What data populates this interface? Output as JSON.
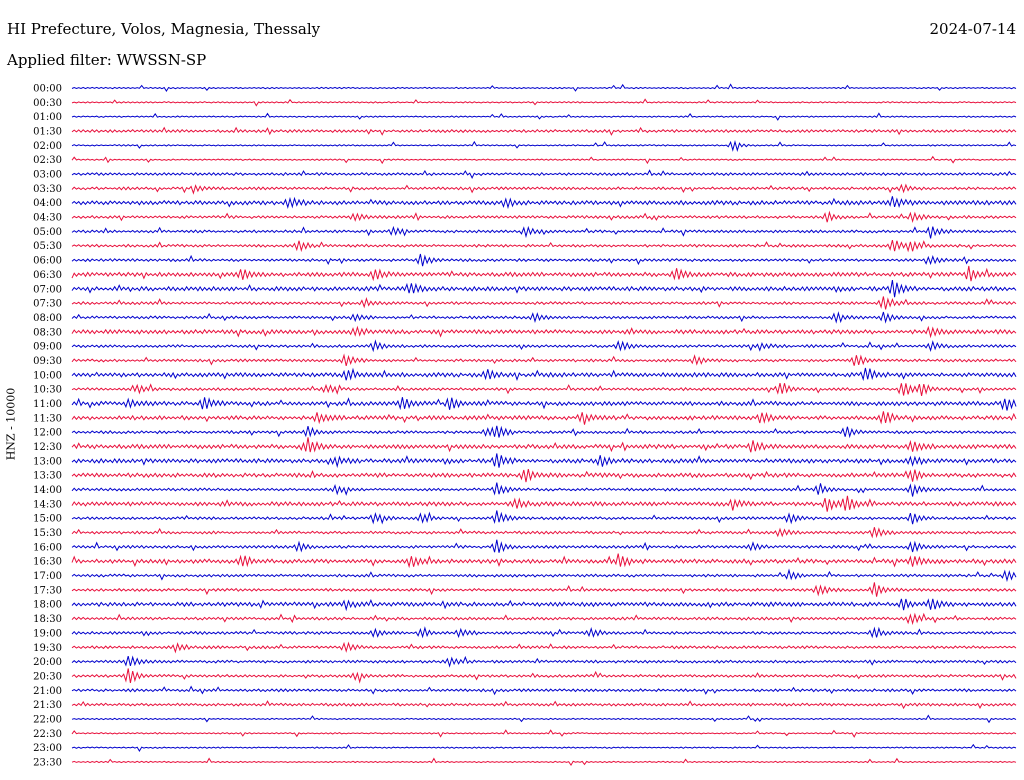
{
  "header": {
    "title": "HI Prefecture, Volos, Magnesia, Thessaly",
    "date": "2024-07-14",
    "filter": "Applied filter: WWSSN-SP"
  },
  "chart_data": {
    "type": "line",
    "ylabel": "HNZ - 10000",
    "row_labels": [
      "00:00",
      "00:30",
      "01:00",
      "01:30",
      "02:00",
      "02:30",
      "03:00",
      "03:30",
      "04:00",
      "04:30",
      "05:00",
      "05:30",
      "06:00",
      "06:30",
      "07:00",
      "07:30",
      "08:00",
      "08:30",
      "09:00",
      "09:30",
      "10:00",
      "10:30",
      "11:00",
      "11:30",
      "12:00",
      "12:30",
      "13:00",
      "13:30",
      "14:00",
      "14:30",
      "15:00",
      "15:30",
      "16:00",
      "16:30",
      "17:00",
      "17:30",
      "18:00",
      "18:30",
      "19:00",
      "19:30",
      "20:00",
      "20:30",
      "21:00",
      "21:30",
      "22:00",
      "22:30",
      "23:00",
      "23:30"
    ],
    "series_colors": [
      "#0000cc",
      "#e8103c"
    ],
    "noise_level": [
      1,
      1,
      1,
      2,
      1,
      1,
      2,
      2,
      3,
      2,
      2,
      2,
      2,
      3,
      3,
      2,
      2,
      3,
      2,
      2,
      3,
      2,
      3,
      3,
      2,
      3,
      3,
      3,
      2,
      3,
      2,
      2,
      2,
      3,
      2,
      2,
      3,
      2,
      2,
      2,
      2,
      2,
      2,
      2,
      1,
      1,
      1,
      1
    ],
    "events": [
      {
        "row": 4,
        "x": 0.7,
        "a": 5
      },
      {
        "row": 7,
        "x": 0.13,
        "a": 3
      },
      {
        "row": 7,
        "x": 0.88,
        "a": 4
      },
      {
        "row": 8,
        "x": 0.23,
        "a": 5
      },
      {
        "row": 8,
        "x": 0.46,
        "a": 4
      },
      {
        "row": 8,
        "x": 0.87,
        "a": 6
      },
      {
        "row": 9,
        "x": 0.3,
        "a": 4
      },
      {
        "row": 9,
        "x": 0.8,
        "a": 5
      },
      {
        "row": 9,
        "x": 0.89,
        "a": 5
      },
      {
        "row": 10,
        "x": 0.34,
        "a": 4
      },
      {
        "row": 10,
        "x": 0.48,
        "a": 5
      },
      {
        "row": 10,
        "x": 0.91,
        "a": 6
      },
      {
        "row": 11,
        "x": 0.24,
        "a": 5
      },
      {
        "row": 11,
        "x": 0.87,
        "a": 7
      },
      {
        "row": 11,
        "x": 0.89,
        "a": 5
      },
      {
        "row": 12,
        "x": 0.37,
        "a": 6
      },
      {
        "row": 12,
        "x": 0.91,
        "a": 4
      },
      {
        "row": 13,
        "x": 0.18,
        "a": 6
      },
      {
        "row": 13,
        "x": 0.32,
        "a": 6
      },
      {
        "row": 13,
        "x": 0.64,
        "a": 6
      },
      {
        "row": 13,
        "x": 0.95,
        "a": 7
      },
      {
        "row": 14,
        "x": 0.36,
        "a": 5
      },
      {
        "row": 14,
        "x": 0.87,
        "a": 8
      },
      {
        "row": 15,
        "x": 0.31,
        "a": 4
      },
      {
        "row": 15,
        "x": 0.86,
        "a": 8
      },
      {
        "row": 16,
        "x": 0.3,
        "a": 4
      },
      {
        "row": 16,
        "x": 0.49,
        "a": 4
      },
      {
        "row": 16,
        "x": 0.81,
        "a": 5
      },
      {
        "row": 16,
        "x": 0.86,
        "a": 5
      },
      {
        "row": 17,
        "x": 0.3,
        "a": 4
      },
      {
        "row": 17,
        "x": 0.91,
        "a": 5
      },
      {
        "row": 18,
        "x": 0.32,
        "a": 6
      },
      {
        "row": 18,
        "x": 0.58,
        "a": 6
      },
      {
        "row": 18,
        "x": 0.73,
        "a": 4
      },
      {
        "row": 18,
        "x": 0.91,
        "a": 4
      },
      {
        "row": 19,
        "x": 0.29,
        "a": 6
      },
      {
        "row": 19,
        "x": 0.66,
        "a": 5
      },
      {
        "row": 19,
        "x": 0.83,
        "a": 6
      },
      {
        "row": 20,
        "x": 0.29,
        "a": 5
      },
      {
        "row": 20,
        "x": 0.44,
        "a": 5
      },
      {
        "row": 20,
        "x": 0.84,
        "a": 6
      },
      {
        "row": 21,
        "x": 0.07,
        "a": 4
      },
      {
        "row": 21,
        "x": 0.27,
        "a": 4
      },
      {
        "row": 21,
        "x": 0.75,
        "a": 7
      },
      {
        "row": 21,
        "x": 0.88,
        "a": 9
      },
      {
        "row": 21,
        "x": 0.9,
        "a": 6
      },
      {
        "row": 22,
        "x": 0.06,
        "a": 4
      },
      {
        "row": 22,
        "x": 0.14,
        "a": 7
      },
      {
        "row": 22,
        "x": 0.35,
        "a": 6
      },
      {
        "row": 22,
        "x": 0.4,
        "a": 6
      },
      {
        "row": 22,
        "x": 0.99,
        "a": 6
      },
      {
        "row": 23,
        "x": 0.26,
        "a": 5
      },
      {
        "row": 23,
        "x": 0.54,
        "a": 5
      },
      {
        "row": 23,
        "x": 0.73,
        "a": 5
      },
      {
        "row": 23,
        "x": 0.86,
        "a": 7
      },
      {
        "row": 24,
        "x": 0.25,
        "a": 5
      },
      {
        "row": 24,
        "x": 0.44,
        "a": 4
      },
      {
        "row": 24,
        "x": 0.45,
        "a": 7
      },
      {
        "row": 24,
        "x": 0.82,
        "a": 6
      },
      {
        "row": 25,
        "x": 0.25,
        "a": 8
      },
      {
        "row": 25,
        "x": 0.72,
        "a": 6
      },
      {
        "row": 25,
        "x": 0.89,
        "a": 6
      },
      {
        "row": 26,
        "x": 0.28,
        "a": 5
      },
      {
        "row": 26,
        "x": 0.45,
        "a": 7
      },
      {
        "row": 26,
        "x": 0.56,
        "a": 5
      },
      {
        "row": 26,
        "x": 0.89,
        "a": 5
      },
      {
        "row": 27,
        "x": 0.48,
        "a": 7
      },
      {
        "row": 27,
        "x": 0.89,
        "a": 6
      },
      {
        "row": 28,
        "x": 0.28,
        "a": 4
      },
      {
        "row": 28,
        "x": 0.45,
        "a": 6
      },
      {
        "row": 28,
        "x": 0.79,
        "a": 5
      },
      {
        "row": 28,
        "x": 0.89,
        "a": 6
      },
      {
        "row": 29,
        "x": 0.47,
        "a": 5
      },
      {
        "row": 29,
        "x": 0.7,
        "a": 5
      },
      {
        "row": 29,
        "x": 0.8,
        "a": 7
      },
      {
        "row": 29,
        "x": 0.82,
        "a": 8
      },
      {
        "row": 30,
        "x": 0.32,
        "a": 5
      },
      {
        "row": 30,
        "x": 0.37,
        "a": 5
      },
      {
        "row": 30,
        "x": 0.45,
        "a": 7
      },
      {
        "row": 30,
        "x": 0.76,
        "a": 5
      },
      {
        "row": 30,
        "x": 0.89,
        "a": 7
      },
      {
        "row": 31,
        "x": 0.75,
        "a": 4
      },
      {
        "row": 31,
        "x": 0.85,
        "a": 6
      },
      {
        "row": 32,
        "x": 0.24,
        "a": 4
      },
      {
        "row": 32,
        "x": 0.45,
        "a": 8
      },
      {
        "row": 32,
        "x": 0.72,
        "a": 4
      },
      {
        "row": 32,
        "x": 0.89,
        "a": 6
      },
      {
        "row": 33,
        "x": 0.18,
        "a": 6
      },
      {
        "row": 33,
        "x": 0.36,
        "a": 6
      },
      {
        "row": 33,
        "x": 0.58,
        "a": 6
      },
      {
        "row": 33,
        "x": 0.89,
        "a": 6
      },
      {
        "row": 34,
        "x": 0.76,
        "a": 5
      },
      {
        "row": 34,
        "x": 0.99,
        "a": 5
      },
      {
        "row": 35,
        "x": 0.79,
        "a": 6
      },
      {
        "row": 35,
        "x": 0.85,
        "a": 7
      },
      {
        "row": 36,
        "x": 0.29,
        "a": 4
      },
      {
        "row": 36,
        "x": 0.88,
        "a": 6
      },
      {
        "row": 36,
        "x": 0.91,
        "a": 6
      },
      {
        "row": 37,
        "x": 0.89,
        "a": 5
      },
      {
        "row": 38,
        "x": 0.32,
        "a": 4
      },
      {
        "row": 38,
        "x": 0.37,
        "a": 4
      },
      {
        "row": 38,
        "x": 0.41,
        "a": 5
      },
      {
        "row": 38,
        "x": 0.55,
        "a": 5
      },
      {
        "row": 38,
        "x": 0.85,
        "a": 5
      },
      {
        "row": 39,
        "x": 0.11,
        "a": 4
      },
      {
        "row": 39,
        "x": 0.29,
        "a": 5
      },
      {
        "row": 40,
        "x": 0.06,
        "a": 7
      },
      {
        "row": 40,
        "x": 0.4,
        "a": 4
      },
      {
        "row": 41,
        "x": 0.06,
        "a": 8
      },
      {
        "row": 41,
        "x": 0.3,
        "a": 4
      }
    ]
  }
}
